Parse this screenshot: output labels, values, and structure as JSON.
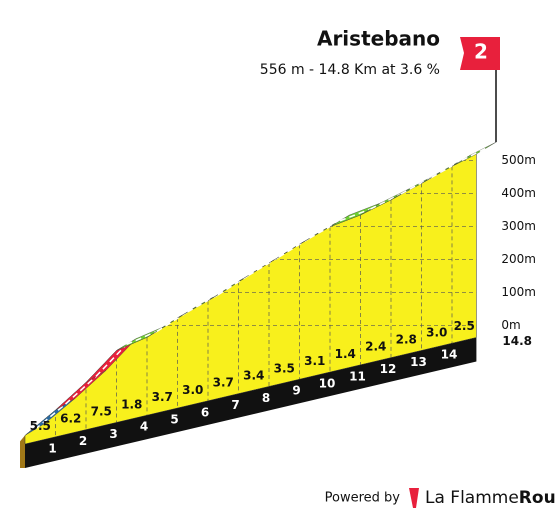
{
  "chart_data": {
    "type": "climb-profile",
    "title": "Aristebano",
    "subtitle": "556 m - 14.8 Km at 3.6 %",
    "category": "2",
    "x": [
      0,
      1,
      2,
      3,
      4,
      5,
      6,
      7,
      8,
      9,
      10,
      11,
      12,
      13,
      14,
      14.8
    ],
    "elevation": [
      26,
      81,
      143,
      218,
      236,
      273,
      303,
      340,
      374,
      409,
      440,
      454,
      478,
      506,
      536,
      556
    ],
    "gradients": [
      5.5,
      6.2,
      7.5,
      1.8,
      3.7,
      3.0,
      3.7,
      3.4,
      3.5,
      3.1,
      1.4,
      2.4,
      2.8,
      3.0,
      2.5
    ],
    "gradient_labels": [
      "5.5",
      "6.2",
      "7.5",
      "1.8",
      "3.7",
      "3.0",
      "3.7",
      "3.4",
      "3.5",
      "3.1",
      "1.4",
      "2.4",
      "2.8",
      "3.0",
      "2.5"
    ],
    "colors": [
      "#2a6aa0",
      "#e8203c",
      "#e8203c",
      "#6fd030",
      "#6fd030",
      "#6fd030",
      "#6fd030",
      "#6fd030",
      "#6fd030",
      "#6fd030",
      "#6fd030",
      "#6fd030",
      "#6fd030",
      "#6fd030",
      "#6fd030"
    ],
    "face_color": "#f8f01c",
    "xticks": [
      1,
      2,
      3,
      4,
      5,
      6,
      7,
      8,
      9,
      10,
      11,
      12,
      13,
      14
    ],
    "yticks": [
      {
        "value": 0,
        "label": "0m"
      },
      {
        "value": 100,
        "label": "100m"
      },
      {
        "value": 200,
        "label": "200m"
      },
      {
        "value": 300,
        "label": "300m"
      },
      {
        "value": 400,
        "label": "400m"
      },
      {
        "value": 500,
        "label": "500m"
      }
    ],
    "footer": {
      "powered": "Powered by",
      "brand": "La Flamme",
      "brand_bold": "Rouge"
    }
  }
}
